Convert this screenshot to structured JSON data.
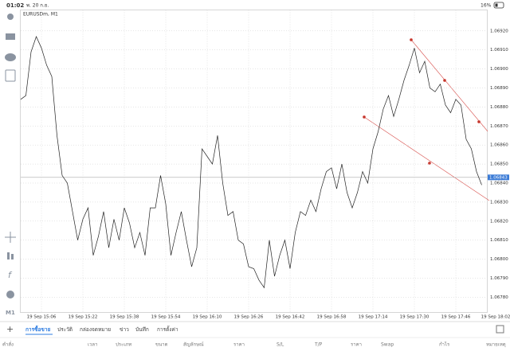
{
  "status_bar": {
    "time": "01:02",
    "date": "พ. 20 ก.ย.",
    "battery": "16%"
  },
  "toolbar": {
    "timeframe": "M1"
  },
  "chart_data": {
    "type": "line",
    "title": "EURUSDm, M1",
    "categories": [
      null,
      null,
      null,
      null,
      "19 Sep 15:06",
      null,
      null,
      null,
      null,
      null,
      null,
      null,
      "19 Sep 15:22",
      null,
      null,
      null,
      null,
      null,
      null,
      null,
      "19 Sep 15:38",
      null,
      null,
      null,
      null,
      null,
      null,
      null,
      "19 Sep 15:54",
      null,
      null,
      null,
      null,
      null,
      null,
      null,
      "19 Sep 16:10",
      null,
      null,
      null,
      null,
      null,
      null,
      null,
      "19 Sep 16:26",
      null,
      null,
      null,
      null,
      null,
      null,
      null,
      "19 Sep 16:42",
      null,
      null,
      null,
      null,
      null,
      null,
      null,
      "19 Sep 16:58",
      null,
      null,
      null,
      null,
      null,
      null,
      null,
      "19 Sep 17:14",
      null,
      null,
      null,
      null,
      null,
      null,
      null,
      "19 Sep 17:30",
      null,
      null,
      null,
      null,
      null,
      null,
      null,
      "19 Sep 17:46",
      null,
      null,
      null,
      null,
      null,
      null,
      null,
      "19 Sep 18:02"
    ],
    "series": [
      {
        "name": "EURUSDm",
        "color": "#222222",
        "values": [
          1.06884,
          1.06886,
          1.06909,
          1.06917,
          1.06911,
          1.06902,
          1.06896,
          1.06865,
          1.06844,
          1.0684,
          1.06825,
          1.0681,
          1.06821,
          1.06827,
          1.06802,
          1.06812,
          1.06825,
          1.06806,
          1.06821,
          1.0681,
          1.06827,
          1.06819,
          1.06806,
          1.06814,
          1.06802,
          1.06827,
          1.06827,
          1.06844,
          1.06829,
          1.06802,
          1.06814,
          1.06825,
          1.0681,
          1.06796,
          1.06806,
          1.06858,
          1.06854,
          1.0685,
          1.06865,
          1.0684,
          1.06823,
          1.06825,
          1.0681,
          1.06808,
          1.06796,
          1.06795,
          1.06789,
          1.06785,
          1.0681,
          1.06791,
          1.06802,
          1.0681,
          1.06795,
          1.06814,
          1.06825,
          1.06823,
          1.06831,
          1.06825,
          1.06837,
          1.06846,
          1.06848,
          1.06837,
          1.0685,
          1.06835,
          1.06827,
          1.06835,
          1.06846,
          1.0684,
          1.06858,
          1.06867,
          1.06879,
          1.06886,
          1.06875,
          1.06884,
          1.06894,
          1.06902,
          1.06911,
          1.06898,
          1.06904,
          1.0689,
          1.06888,
          1.06892,
          1.06881,
          1.06877,
          1.06884,
          1.06881,
          1.06863,
          1.06858,
          1.06846,
          1.06839,
          null,
          null,
          null
        ]
      }
    ],
    "ylim": [
      1.06772,
      1.06931
    ],
    "yticks": [
      {
        "value": 1.0678,
        "label": "1.06780"
      },
      {
        "value": 1.0679,
        "label": "1.06790"
      },
      {
        "value": 1.068,
        "label": "1.06800"
      },
      {
        "value": 1.0681,
        "label": "1.06810"
      },
      {
        "value": 1.0682,
        "label": "1.06820"
      },
      {
        "value": 1.0683,
        "label": "1.06830"
      },
      {
        "value": 1.0684,
        "label": "1.06840"
      },
      {
        "value": 1.0685,
        "label": "1.06850"
      },
      {
        "value": 1.0686,
        "label": "1.06860"
      },
      {
        "value": 1.0687,
        "label": "1.06870"
      },
      {
        "value": 1.0688,
        "label": "1.06880"
      },
      {
        "value": 1.0689,
        "label": "1.06890"
      },
      {
        "value": 1.069,
        "label": "1.06900"
      },
      {
        "value": 1.0691,
        "label": "1.06910"
      },
      {
        "value": 1.0692,
        "label": "1.06920"
      }
    ],
    "current_price": 1.06843,
    "grid": true
  },
  "tabs": {
    "items": [
      "การซื้อขาย",
      "ประวัติ",
      "กล่องจดหมาย",
      "ข่าว",
      "บันทึก",
      "การตั้งค่า"
    ],
    "active": 0
  },
  "columns": [
    "คำสั่ง",
    "เวลา",
    "ประเภท",
    "ขนาด",
    "สัญลักษณ์",
    "ราคา",
    "S/L",
    "T/P",
    "ราคา",
    "Swap",
    "กำไร",
    "หมายเหตุ"
  ]
}
